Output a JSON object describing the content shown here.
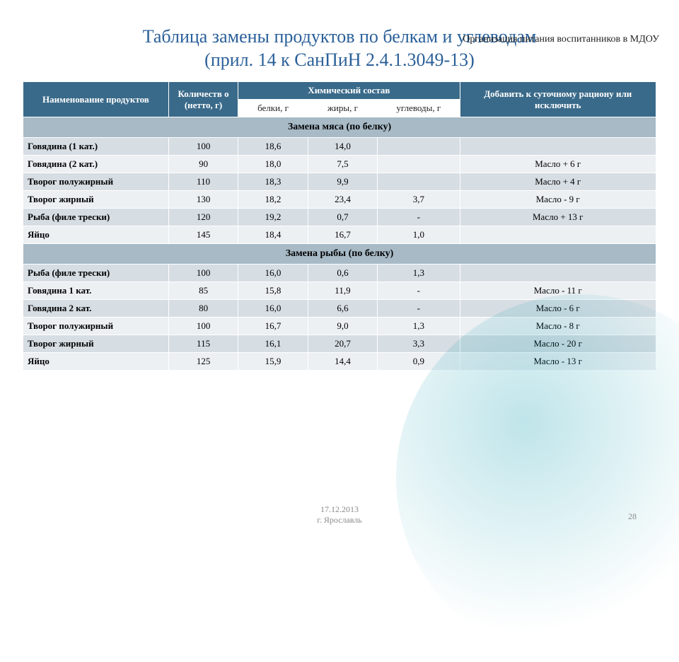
{
  "header_small": "Организация питания воспитанников в МДОУ",
  "title_line1": "Таблица замены продуктов по белкам и углеводам",
  "title_line2": "(прил. 14 к СанПиН 2.4.1.3049-13)",
  "columns": {
    "name": "Наименование продуктов",
    "qty": "Количеств о (нетто, г)",
    "chem": "Химический состав",
    "protein": "белки, г",
    "fat": "жиры, г",
    "carb": "углеводы, г",
    "addrem": "Добавить к суточному рациону или исключить"
  },
  "sections": [
    {
      "title": "Замена мяса (по белку)",
      "rows": [
        {
          "name": "Говядина (1 кат.)",
          "qty": "100",
          "p": "18,6",
          "f": "14,0",
          "c": "",
          "add": ""
        },
        {
          "name": "Говядина (2 кат.)",
          "qty": "90",
          "p": "18,0",
          "f": "7,5",
          "c": "",
          "add": "Масло + 6 г"
        },
        {
          "name": "Творог полужирный",
          "qty": "110",
          "p": "18,3",
          "f": "9,9",
          "c": "",
          "add": "Масло + 4 г"
        },
        {
          "name": "Творог жирный",
          "qty": "130",
          "p": "18,2",
          "f": "23,4",
          "c": "3,7",
          "add": "Масло - 9 г"
        },
        {
          "name": "Рыба (филе трески)",
          "qty": "120",
          "p": "19,2",
          "f": "0,7",
          "c": "-",
          "add": "Масло + 13 г"
        },
        {
          "name": "Яйцо",
          "qty": "145",
          "p": "18,4",
          "f": "16,7",
          "c": "1,0",
          "add": ""
        }
      ]
    },
    {
      "title": "Замена рыбы (по белку)",
      "rows": [
        {
          "name": "Рыба (филе трески)",
          "qty": "100",
          "p": "16,0",
          "f": "0,6",
          "c": "1,3",
          "add": ""
        },
        {
          "name": "Говядина 1 кат.",
          "qty": "85",
          "p": "15,8",
          "f": "11,9",
          "c": "-",
          "add": "Масло - 11 г"
        },
        {
          "name": "Говядина 2 кат.",
          "qty": "80",
          "p": "16,0",
          "f": "6,6",
          "c": "-",
          "add": "Масло - 6 г"
        },
        {
          "name": "Творог полужирный",
          "qty": "100",
          "p": "16,7",
          "f": "9,0",
          "c": "1,3",
          "add": "Масло - 8 г"
        },
        {
          "name": "Творог жирный",
          "qty": "115",
          "p": "16,1",
          "f": "20,7",
          "c": "3,3",
          "add": "Масло - 20 г"
        },
        {
          "name": "Яйцо",
          "qty": "125",
          "p": "15,9",
          "f": "14,4",
          "c": "0,9",
          "add": "Масло - 13 г"
        }
      ]
    }
  ],
  "footer_date": "17.12.2013",
  "footer_place": "г. Ярославль",
  "page_number": "28",
  "colors": {
    "title": "#2a6099",
    "header_bg": "#3a6a8a",
    "section_bg": "#a7bac6",
    "row_odd": "#d6dde3",
    "row_even": "#ecf0f3",
    "footer": "#8a8a8a"
  }
}
